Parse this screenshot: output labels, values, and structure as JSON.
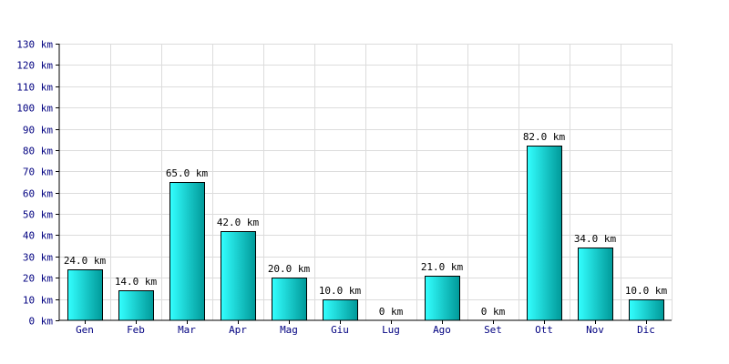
{
  "chart_data": {
    "type": "bar",
    "categories": [
      "Gen",
      "Feb",
      "Mar",
      "Apr",
      "Mag",
      "Giu",
      "Lug",
      "Ago",
      "Set",
      "Ott",
      "Nov",
      "Dic"
    ],
    "values": [
      24,
      14,
      65,
      42,
      20,
      10,
      0,
      21,
      0,
      82,
      34,
      10
    ],
    "value_labels": [
      "24.0 km",
      "14.0 km",
      "65.0 km",
      "42.0 km",
      "20.0 km",
      "10.0 km",
      "0 km",
      "21.0 km",
      "0 km",
      "82.0 km",
      "34.0 km",
      "10.0 km"
    ],
    "yticks": [
      0,
      10,
      20,
      30,
      40,
      50,
      60,
      70,
      80,
      90,
      100,
      110,
      120,
      130
    ],
    "ytick_labels": [
      "0 km",
      "10 km",
      "20 km",
      "30 km",
      "40 km",
      "50 km",
      "60 km",
      "70 km",
      "80 km",
      "90 km",
      "100 km",
      "110 km",
      "120 km",
      "130 km"
    ],
    "title": "",
    "xlabel": "",
    "ylabel": "",
    "ylim": [
      0,
      130
    ],
    "grid": true,
    "colors": {
      "bar_light": "#33ffff",
      "bar_dark": "#009999",
      "tick_text": "#000080",
      "grid": "#dcdcdc"
    }
  }
}
